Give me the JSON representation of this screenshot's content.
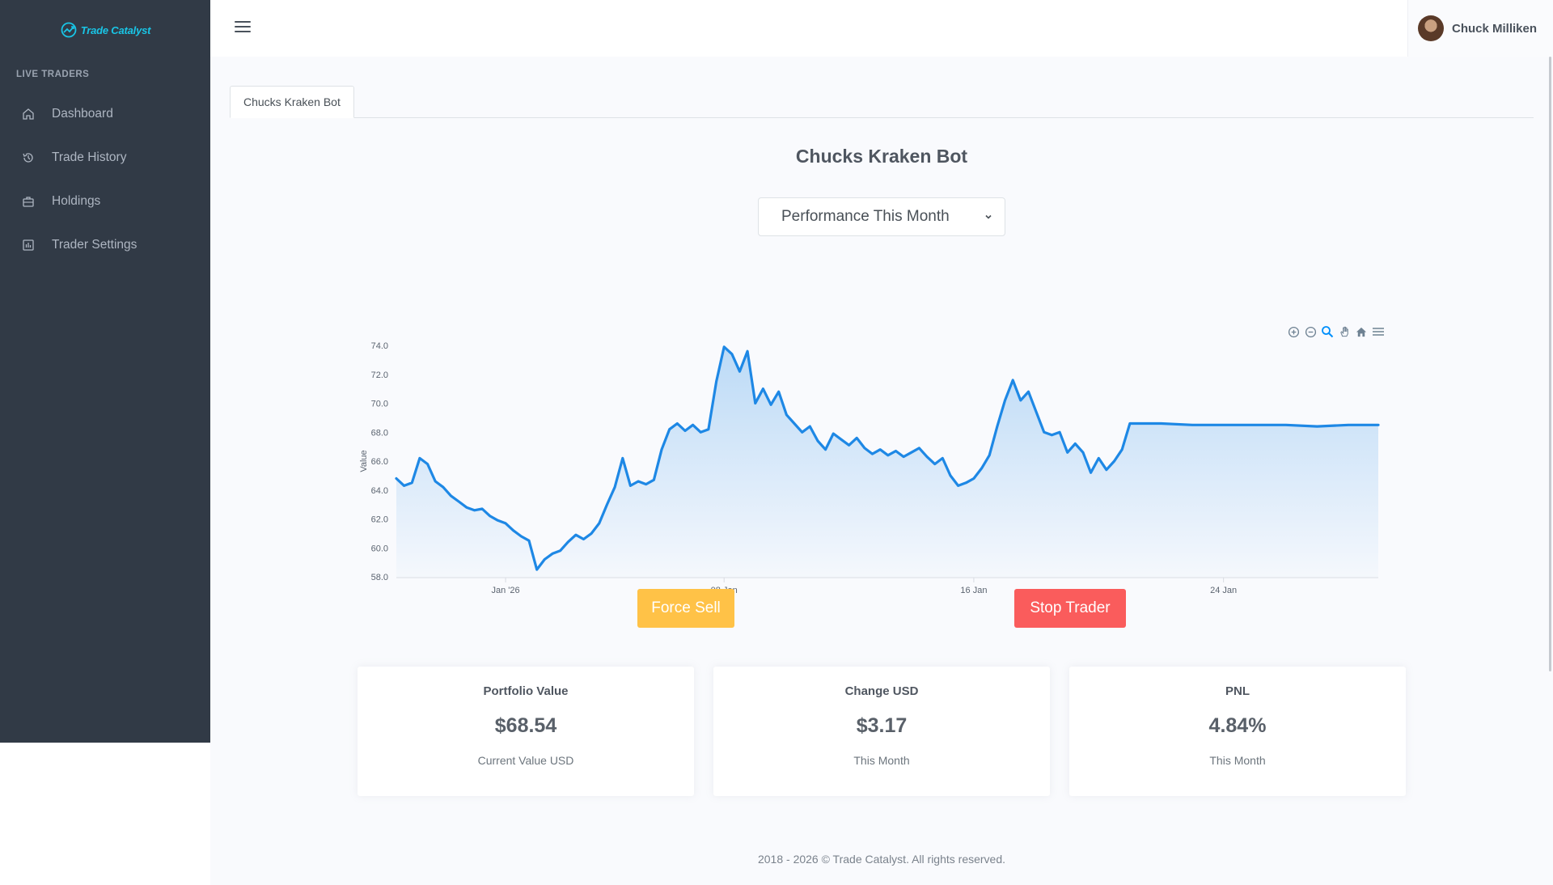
{
  "brand": {
    "name": "Trade Catalyst",
    "accent": "#19c5e6"
  },
  "sidebar": {
    "section_title": "LIVE TRADERS",
    "items": [
      {
        "label": "Dashboard",
        "icon": "home-icon"
      },
      {
        "label": "Trade History",
        "icon": "history-icon"
      },
      {
        "label": "Holdings",
        "icon": "briefcase-icon"
      },
      {
        "label": "Trader Settings",
        "icon": "bar-chart-icon"
      }
    ]
  },
  "header": {
    "user_name": "Chuck Milliken"
  },
  "tabs": [
    {
      "label": "Chucks Kraken Bot",
      "active": true
    }
  ],
  "main": {
    "title": "Chucks Kraken Bot",
    "period_select": {
      "selected": "Performance This Month"
    },
    "actions": {
      "force_sell": "Force Sell",
      "stop_trader": "Stop Trader"
    }
  },
  "chart_toolbar": [
    "zoom-in-icon",
    "zoom-out-icon",
    "magnifier-icon",
    "pan-hand-icon",
    "home-reset-icon",
    "menu-icon"
  ],
  "chart_data": {
    "type": "area",
    "title": "",
    "xlabel": "",
    "ylabel": "Value",
    "ylim": [
      58.0,
      74.0
    ],
    "y_ticks": [
      "74.0",
      "72.0",
      "70.0",
      "68.0",
      "66.0",
      "64.0",
      "62.0",
      "60.0",
      "58.0"
    ],
    "x_ticks": [
      {
        "label": "Jan '26",
        "date": "2026-01-01"
      },
      {
        "label": "08 Jan",
        "date": "2026-01-08"
      },
      {
        "label": "16 Jan",
        "date": "2026-01-16"
      },
      {
        "label": "24 Jan",
        "date": "2026-01-24"
      }
    ],
    "grid": false,
    "line_color": "#1e88e5",
    "series": [
      {
        "points": [
          [
            "2025-12-28T12:00",
            64.8
          ],
          [
            "2025-12-28T18:00",
            64.3
          ],
          [
            "2025-12-29T00:00",
            64.5
          ],
          [
            "2025-12-29T06:00",
            66.2
          ],
          [
            "2025-12-29T12:00",
            65.8
          ],
          [
            "2025-12-29T18:00",
            64.6
          ],
          [
            "2025-12-30T00:00",
            64.2
          ],
          [
            "2025-12-30T06:00",
            63.6
          ],
          [
            "2025-12-30T12:00",
            63.2
          ],
          [
            "2025-12-30T18:00",
            62.8
          ],
          [
            "2025-12-31T00:00",
            62.6
          ],
          [
            "2025-12-31T06:00",
            62.7
          ],
          [
            "2025-12-31T12:00",
            62.2
          ],
          [
            "2025-12-31T18:00",
            61.9
          ],
          [
            "2026-01-01T00:00",
            61.7
          ],
          [
            "2026-01-01T06:00",
            61.2
          ],
          [
            "2026-01-01T12:00",
            60.8
          ],
          [
            "2026-01-01T18:00",
            60.5
          ],
          [
            "2026-01-02T00:00",
            58.5
          ],
          [
            "2026-01-02T06:00",
            59.2
          ],
          [
            "2026-01-02T12:00",
            59.6
          ],
          [
            "2026-01-02T18:00",
            59.8
          ],
          [
            "2026-01-03T00:00",
            60.4
          ],
          [
            "2026-01-03T06:00",
            60.9
          ],
          [
            "2026-01-03T12:00",
            60.6
          ],
          [
            "2026-01-03T18:00",
            61.0
          ],
          [
            "2026-01-04T00:00",
            61.7
          ],
          [
            "2026-01-04T06:00",
            63.0
          ],
          [
            "2026-01-04T12:00",
            64.2
          ],
          [
            "2026-01-04T18:00",
            66.2
          ],
          [
            "2026-01-05T00:00",
            64.3
          ],
          [
            "2026-01-05T06:00",
            64.6
          ],
          [
            "2026-01-05T12:00",
            64.4
          ],
          [
            "2026-01-05T18:00",
            64.7
          ],
          [
            "2026-01-06T00:00",
            66.8
          ],
          [
            "2026-01-06T06:00",
            68.2
          ],
          [
            "2026-01-06T12:00",
            68.6
          ],
          [
            "2026-01-06T18:00",
            68.1
          ],
          [
            "2026-01-07T00:00",
            68.5
          ],
          [
            "2026-01-07T06:00",
            68.0
          ],
          [
            "2026-01-07T12:00",
            68.2
          ],
          [
            "2026-01-07T18:00",
            71.5
          ],
          [
            "2026-01-08T00:00",
            73.9
          ],
          [
            "2026-01-08T06:00",
            73.4
          ],
          [
            "2026-01-08T12:00",
            72.2
          ],
          [
            "2026-01-08T18:00",
            73.6
          ],
          [
            "2026-01-09T00:00",
            70.0
          ],
          [
            "2026-01-09T06:00",
            71.0
          ],
          [
            "2026-01-09T12:00",
            69.9
          ],
          [
            "2026-01-09T18:00",
            70.8
          ],
          [
            "2026-01-10T00:00",
            69.2
          ],
          [
            "2026-01-10T06:00",
            68.6
          ],
          [
            "2026-01-10T12:00",
            68.0
          ],
          [
            "2026-01-10T18:00",
            68.4
          ],
          [
            "2026-01-11T00:00",
            67.4
          ],
          [
            "2026-01-11T06:00",
            66.8
          ],
          [
            "2026-01-11T12:00",
            67.9
          ],
          [
            "2026-01-11T18:00",
            67.5
          ],
          [
            "2026-01-12T00:00",
            67.1
          ],
          [
            "2026-01-12T06:00",
            67.6
          ],
          [
            "2026-01-12T12:00",
            66.9
          ],
          [
            "2026-01-12T18:00",
            66.5
          ],
          [
            "2026-01-13T00:00",
            66.8
          ],
          [
            "2026-01-13T06:00",
            66.4
          ],
          [
            "2026-01-13T12:00",
            66.7
          ],
          [
            "2026-01-13T18:00",
            66.3
          ],
          [
            "2026-01-14T00:00",
            66.6
          ],
          [
            "2026-01-14T06:00",
            66.9
          ],
          [
            "2026-01-14T12:00",
            66.3
          ],
          [
            "2026-01-14T18:00",
            65.8
          ],
          [
            "2026-01-15T00:00",
            66.2
          ],
          [
            "2026-01-15T06:00",
            65.0
          ],
          [
            "2026-01-15T12:00",
            64.3
          ],
          [
            "2026-01-15T18:00",
            64.5
          ],
          [
            "2026-01-16T00:00",
            64.8
          ],
          [
            "2026-01-16T06:00",
            65.5
          ],
          [
            "2026-01-16T12:00",
            66.4
          ],
          [
            "2026-01-16T18:00",
            68.4
          ],
          [
            "2026-01-17T00:00",
            70.2
          ],
          [
            "2026-01-17T06:00",
            71.6
          ],
          [
            "2026-01-17T12:00",
            70.2
          ],
          [
            "2026-01-17T18:00",
            70.8
          ],
          [
            "2026-01-18T00:00",
            69.4
          ],
          [
            "2026-01-18T06:00",
            68.0
          ],
          [
            "2026-01-18T12:00",
            67.8
          ],
          [
            "2026-01-18T18:00",
            68.0
          ],
          [
            "2026-01-19T00:00",
            66.6
          ],
          [
            "2026-01-19T06:00",
            67.2
          ],
          [
            "2026-01-19T12:00",
            66.6
          ],
          [
            "2026-01-19T18:00",
            65.2
          ],
          [
            "2026-01-20T00:00",
            66.2
          ],
          [
            "2026-01-20T06:00",
            65.4
          ],
          [
            "2026-01-20T12:00",
            66.0
          ],
          [
            "2026-01-20T18:00",
            66.8
          ],
          [
            "2026-01-21T00:00",
            68.6
          ],
          [
            "2026-01-22T00:00",
            68.6
          ],
          [
            "2026-01-23T00:00",
            68.5
          ],
          [
            "2026-01-24T00:00",
            68.5
          ],
          [
            "2026-01-25T00:00",
            68.5
          ],
          [
            "2026-01-26T00:00",
            68.5
          ],
          [
            "2026-01-27T00:00",
            68.4
          ],
          [
            "2026-01-28T00:00",
            68.5
          ],
          [
            "2026-01-28T23:00",
            68.5
          ]
        ]
      }
    ]
  },
  "stats": [
    {
      "title": "Portfolio Value",
      "value": "$68.54",
      "subtitle": "Current Value USD"
    },
    {
      "title": "Change USD",
      "value": "$3.17",
      "subtitle": "This Month"
    },
    {
      "title": "PNL",
      "value": "4.84%",
      "subtitle": "This Month"
    }
  ],
  "footer": {
    "text": "2018 - 2026 © Trade Catalyst. All rights reserved."
  },
  "colors": {
    "sidebar_bg": "#313a46",
    "force_sell": "#ffc247",
    "stop_trader": "#fa5c5c"
  }
}
